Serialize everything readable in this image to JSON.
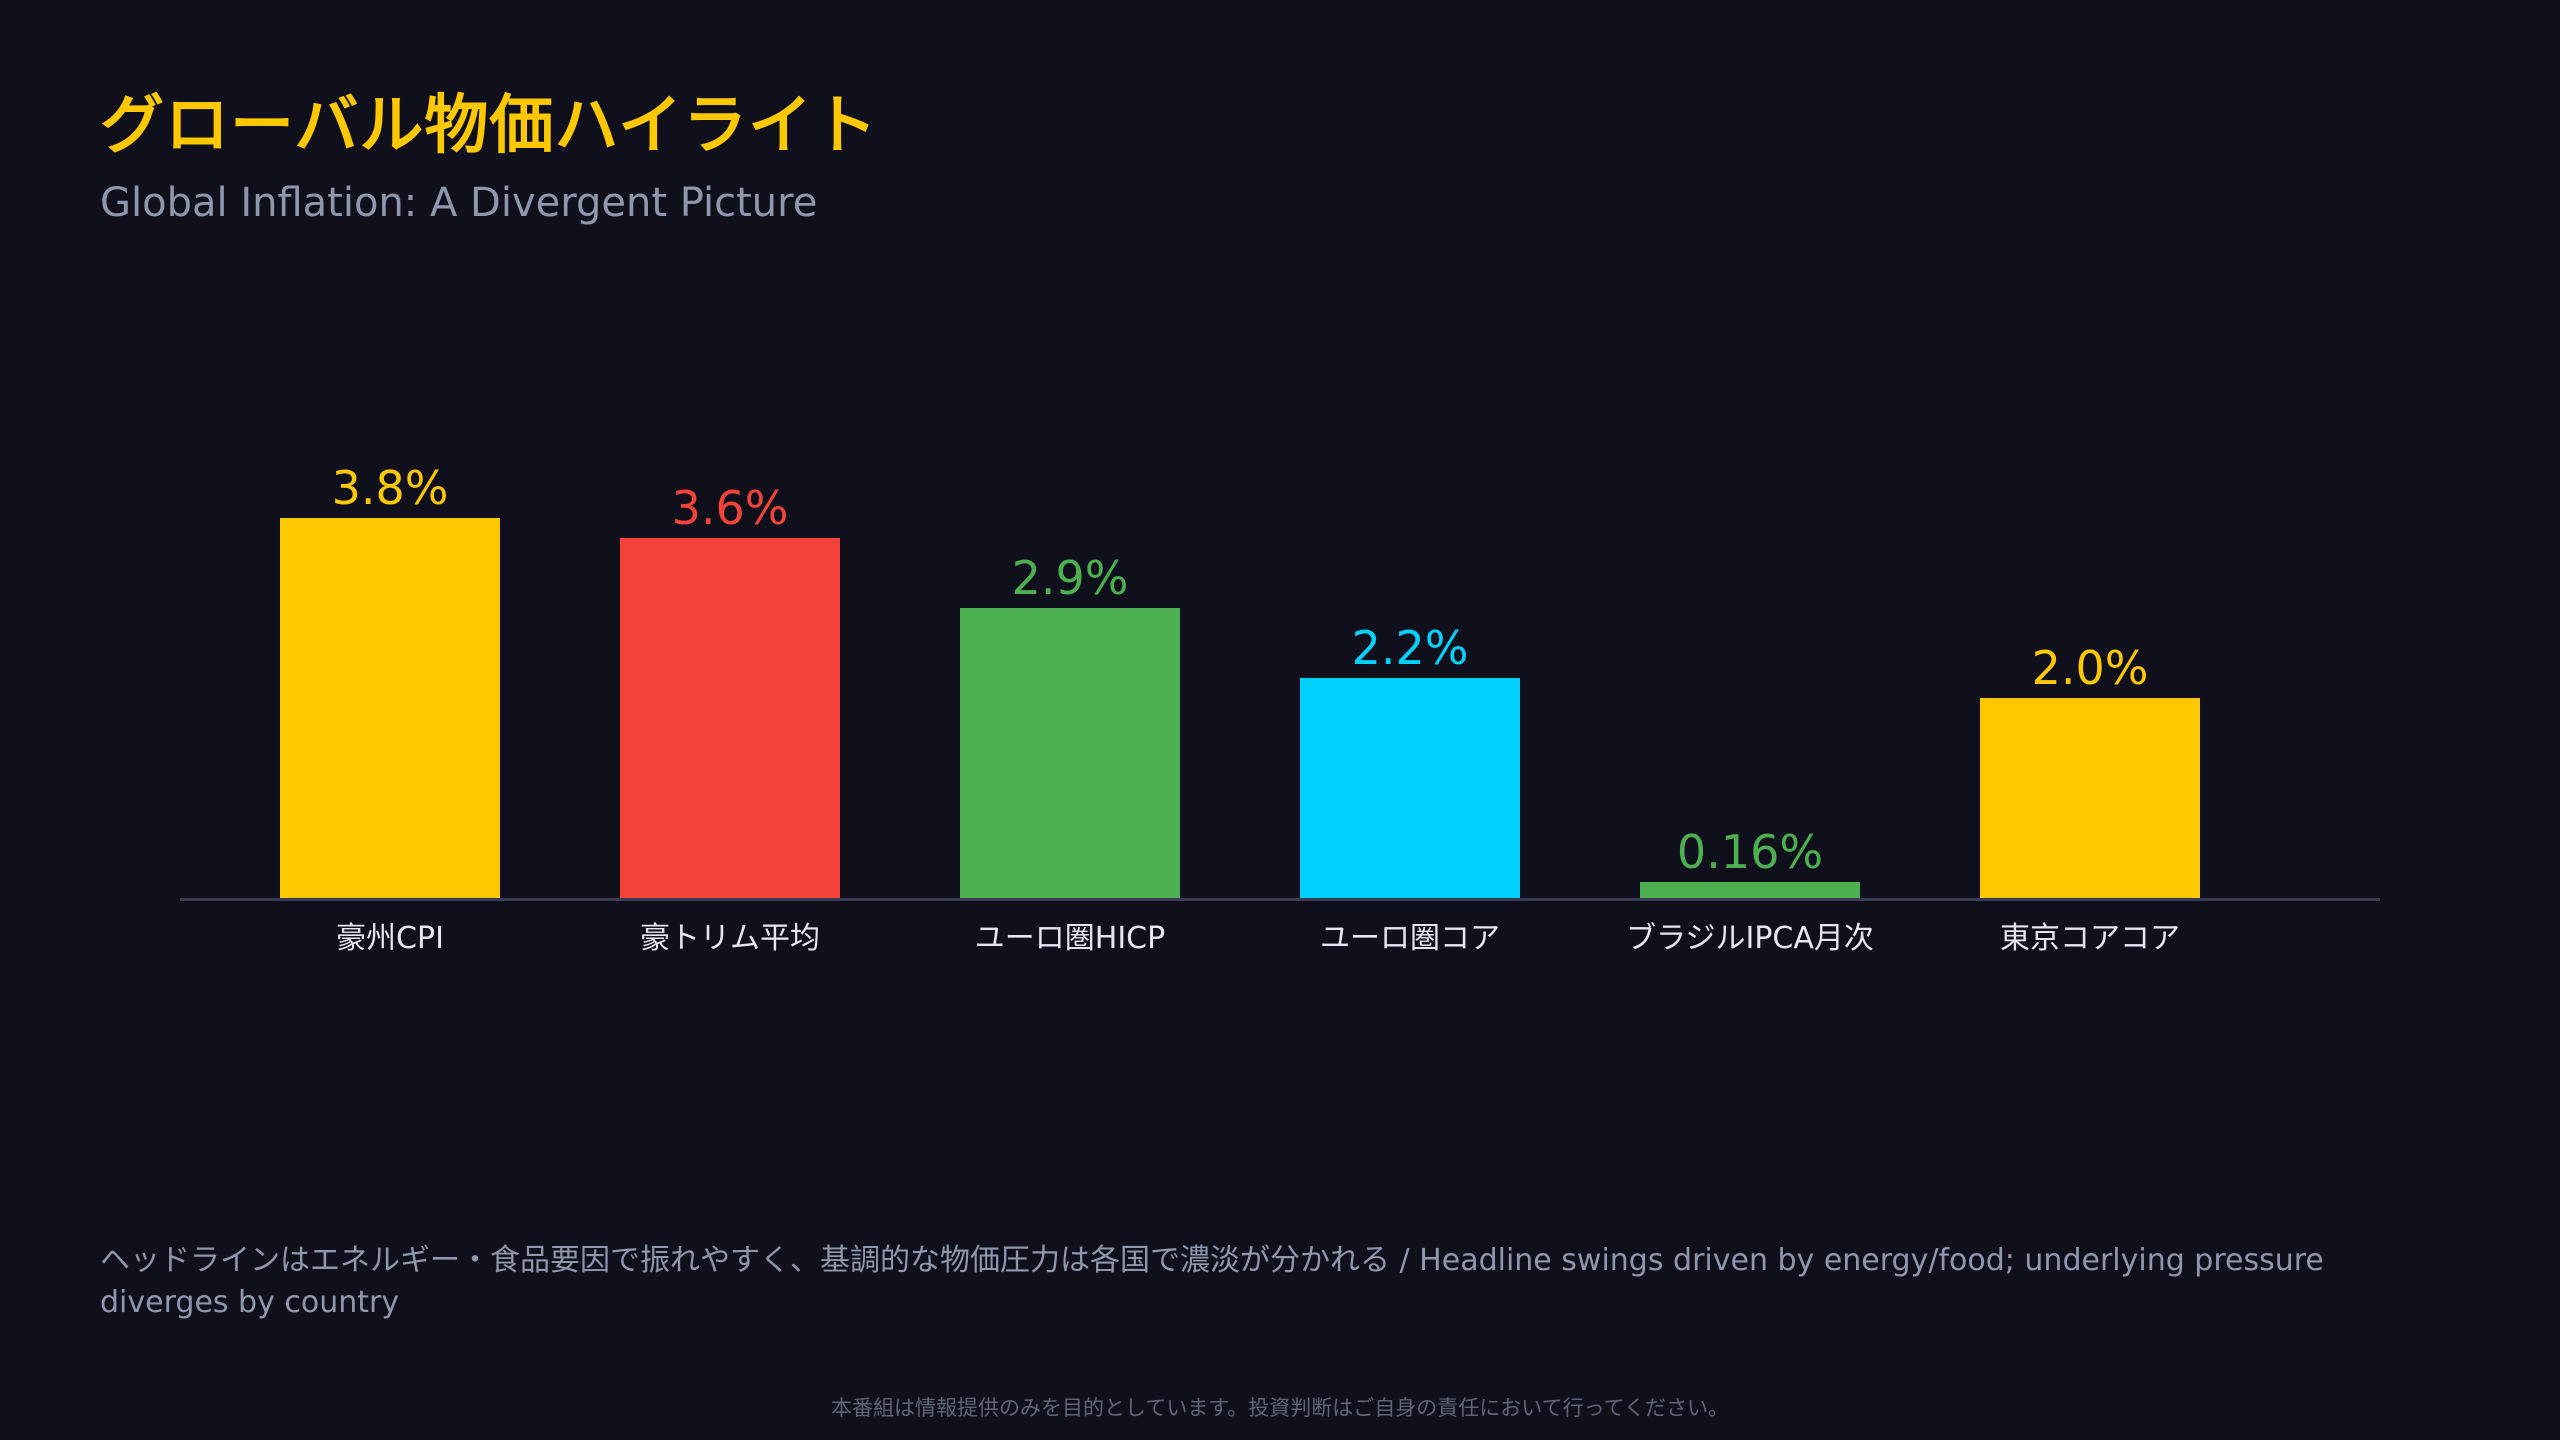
{
  "header": {
    "title": "グローバル物価ハイライト",
    "subtitle": "Global Inflation: A Divergent Picture"
  },
  "chart_data": {
    "type": "bar",
    "categories": [
      "豪州CPI",
      "豪トリム平均",
      "ユーロ圏HICP",
      "ユーロ圏コア",
      "ブラジルIPCA月次",
      "東京コアコア"
    ],
    "values": [
      3.8,
      3.6,
      2.9,
      2.2,
      0.16,
      2.0
    ],
    "value_labels": [
      "3.8%",
      "3.6%",
      "2.9%",
      "2.2%",
      "0.16%",
      "2.0%"
    ],
    "colors": [
      "#ffc800",
      "#f5433a",
      "#4caf50",
      "#00d2ff",
      "#4caf50",
      "#ffc800"
    ],
    "ylim": [
      0,
      5.7
    ],
    "grid": false,
    "axis_color": "#3a3c55",
    "tick_label_color": "#e6e8f0"
  },
  "footer": {
    "note": "ヘッドラインはエネルギー・食品要因で振れやすく、基調的な物価圧力は各国で濃淡が分かれる / Headline swings driven by energy/food; underlying pressure diverges by country",
    "disclaimer": "本番組は情報提供のみを目的としています。投資判断はご自身の責任において行ってください。"
  }
}
